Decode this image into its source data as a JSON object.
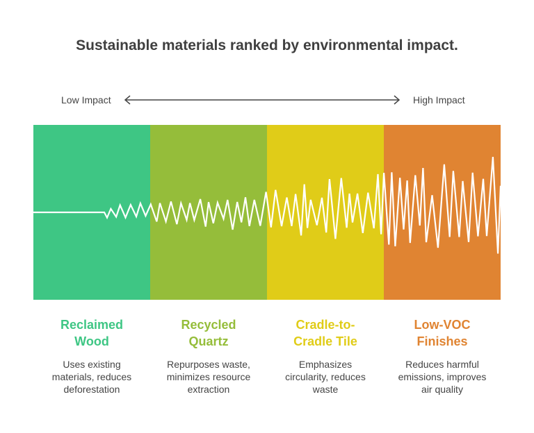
{
  "title": "Sustainable materials ranked by environmental impact.",
  "scale": {
    "low_label": "Low Impact",
    "high_label": "High Impact"
  },
  "materials": [
    {
      "name": "Reclaimed Wood",
      "description": "Uses existing materials, reduces deforestation",
      "color": "#3EC684"
    },
    {
      "name": "Recycled Quartz",
      "description": "Repurposes waste, minimizes resource extraction",
      "color": "#95BD3A"
    },
    {
      "name": "Cradle-to-Cradle Tile",
      "description": "Emphasizes circularity, reduces waste",
      "color": "#E0CC18"
    },
    {
      "name": "Low-VOC Finishes",
      "description": "Reduces harmful emissions, improves air quality",
      "color": "#E08432"
    }
  ],
  "waveform_color": "#FFFFFF"
}
